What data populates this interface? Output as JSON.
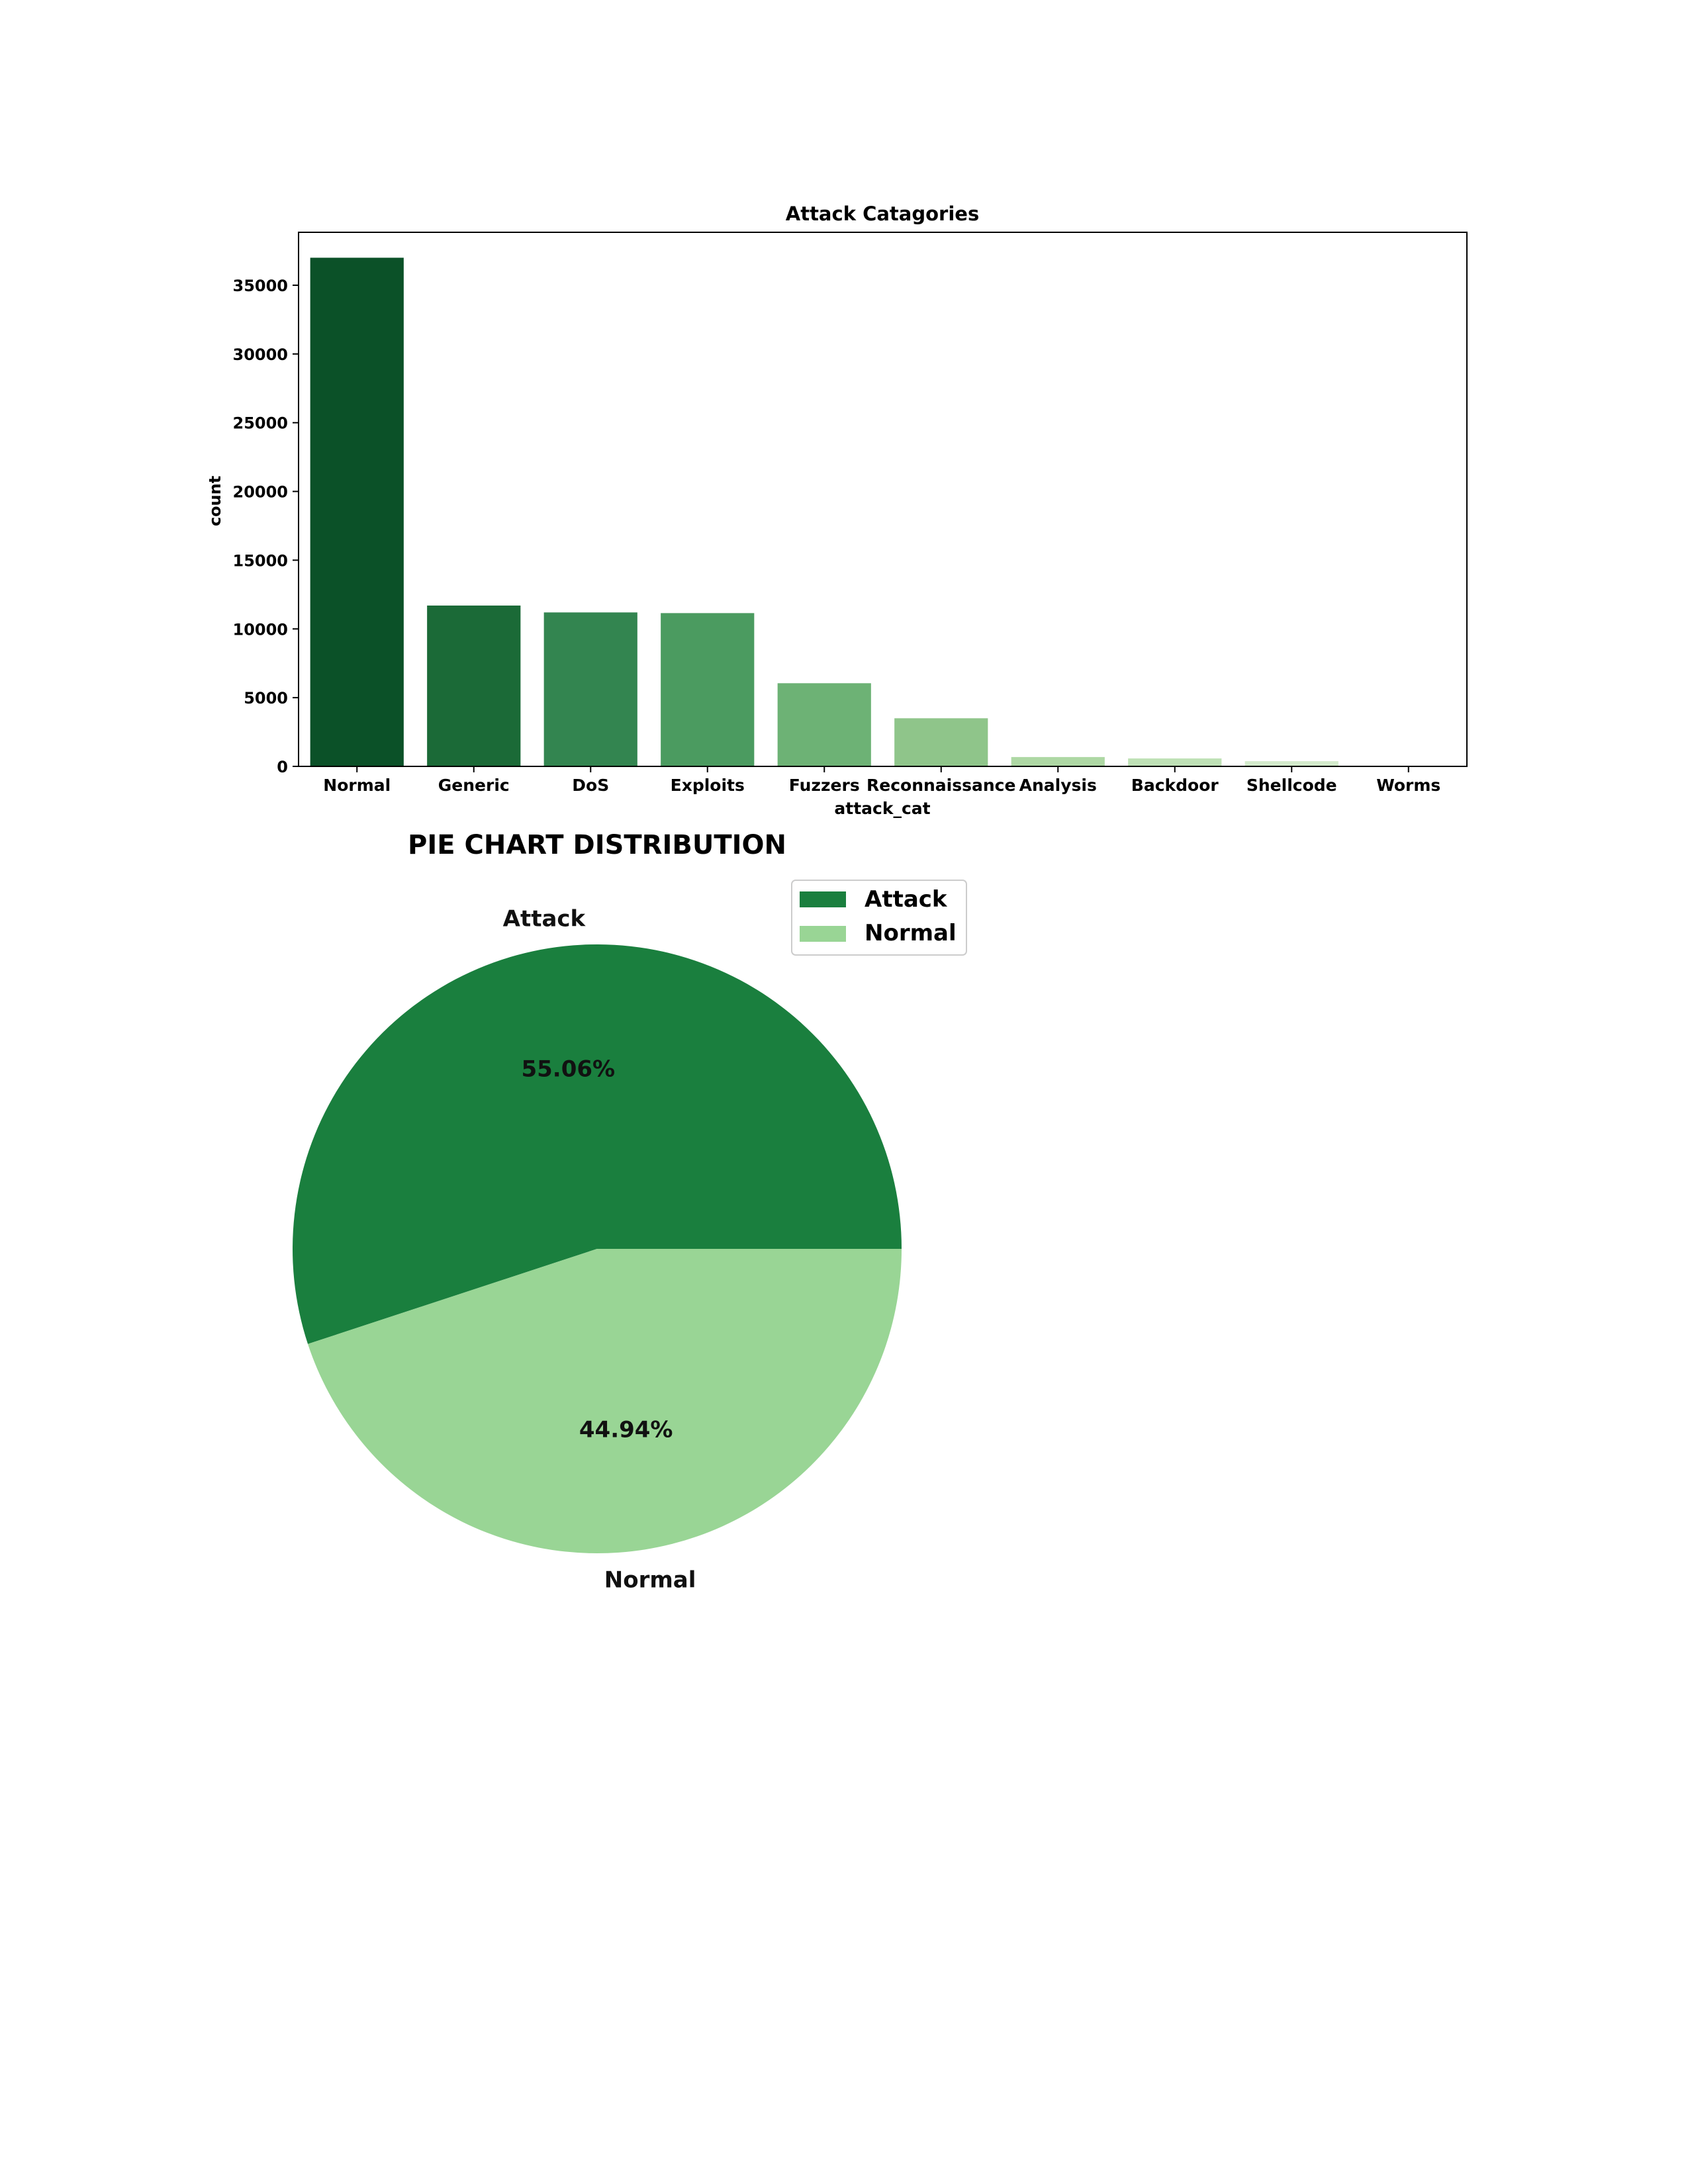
{
  "chart_data": [
    {
      "type": "bar",
      "title": "Attack Catagories",
      "xlabel": "attack_cat",
      "ylabel": "count",
      "categories": [
        "Normal",
        "Generic",
        "DoS",
        "Exploits",
        "Fuzzers",
        "Reconnaissance",
        "Analysis",
        "Backdoor",
        "Shellcode",
        "Worms"
      ],
      "values": [
        37000,
        11700,
        11200,
        11150,
        6050,
        3500,
        680,
        580,
        380,
        40
      ],
      "ylim": [
        0,
        38850
      ],
      "yticks": [
        0,
        5000,
        10000,
        15000,
        20000,
        25000,
        30000,
        35000
      ],
      "colors": [
        "#0b5128",
        "#1b6a37",
        "#338550",
        "#4b9b60",
        "#6db275",
        "#8fc58a",
        "#aed8a4",
        "#bfe1b6",
        "#d4ebcc",
        "#e9f6e4"
      ],
      "grid": false
    },
    {
      "type": "pie",
      "title": "PIE CHART DISTRIBUTION",
      "slices": [
        {
          "label": "Attack",
          "value": 55.06,
          "pct_label": "55.06%",
          "color": "#1a7f3e"
        },
        {
          "label": "Normal",
          "value": 44.94,
          "pct_label": "44.94%",
          "color": "#99d595"
        }
      ],
      "legend": {
        "placement": "top-right",
        "entries": [
          "Attack",
          "Normal"
        ]
      }
    }
  ]
}
